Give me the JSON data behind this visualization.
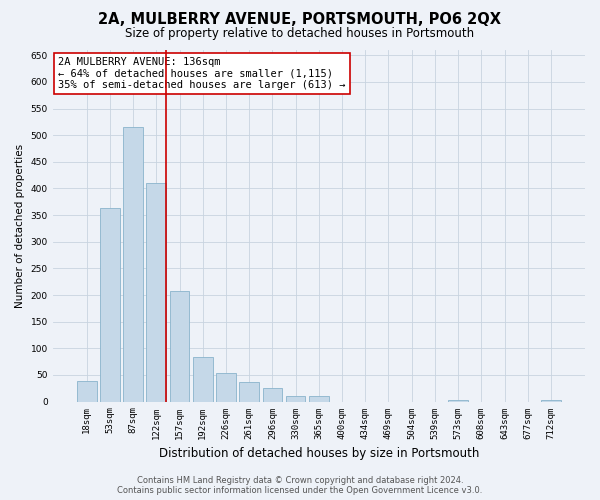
{
  "title": "2A, MULBERRY AVENUE, PORTSMOUTH, PO6 2QX",
  "subtitle": "Size of property relative to detached houses in Portsmouth",
  "xlabel": "Distribution of detached houses by size in Portsmouth",
  "ylabel": "Number of detached properties",
  "bar_labels": [
    "18sqm",
    "53sqm",
    "87sqm",
    "122sqm",
    "157sqm",
    "192sqm",
    "226sqm",
    "261sqm",
    "296sqm",
    "330sqm",
    "365sqm",
    "400sqm",
    "434sqm",
    "469sqm",
    "504sqm",
    "539sqm",
    "573sqm",
    "608sqm",
    "643sqm",
    "677sqm",
    "712sqm"
  ],
  "bar_values": [
    38,
    363,
    515,
    410,
    207,
    83,
    53,
    37,
    25,
    10,
    10,
    0,
    0,
    0,
    0,
    0,
    2,
    0,
    0,
    0,
    2
  ],
  "bar_color": "#c5d8e8",
  "bar_edgecolor": "#8ab4cc",
  "vline_x_index": 3,
  "vline_color": "#cc0000",
  "annotation_line1": "2A MULBERRY AVENUE: 136sqm",
  "annotation_line2": "← 64% of detached houses are smaller (1,115)",
  "annotation_line3": "35% of semi-detached houses are larger (613) →",
  "annotation_box_facecolor": "#ffffff",
  "annotation_box_edgecolor": "#cc0000",
  "ylim": [
    0,
    660
  ],
  "yticks": [
    0,
    50,
    100,
    150,
    200,
    250,
    300,
    350,
    400,
    450,
    500,
    550,
    600,
    650
  ],
  "grid_color": "#c8d4e0",
  "background_color": "#eef2f8",
  "footer_line1": "Contains HM Land Registry data © Crown copyright and database right 2024.",
  "footer_line2": "Contains public sector information licensed under the Open Government Licence v3.0.",
  "title_fontsize": 10.5,
  "subtitle_fontsize": 8.5,
  "xlabel_fontsize": 8.5,
  "ylabel_fontsize": 7.5,
  "tick_fontsize": 6.5,
  "annotation_fontsize": 7.5,
  "footer_fontsize": 6.0
}
